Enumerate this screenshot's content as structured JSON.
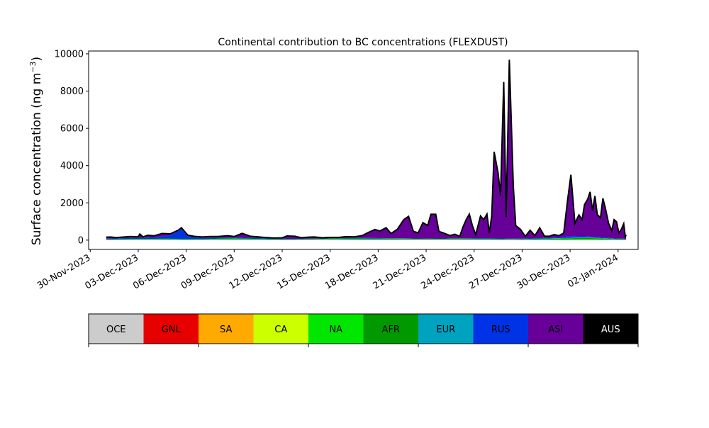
{
  "chart_data": {
    "type": "area",
    "stacked": true,
    "title": "Continental contribution to BC concentrations (FLEXDUST)",
    "ylabel": "Surface concentration (ng m",
    "ylabel_sup": "−3",
    "ylabel_close": ")",
    "xlabel": "",
    "ylim": [
      -500,
      10150
    ],
    "xlim": [
      "2023-11-30",
      "2024-01-03"
    ],
    "y_ticks": [
      0,
      2000,
      4000,
      6000,
      8000,
      10000
    ],
    "x_ticks": [
      "2023-11-30",
      "2023-12-03",
      "2023-12-06",
      "2023-12-09",
      "2023-12-12",
      "2023-12-15",
      "2023-12-18",
      "2023-12-21",
      "2023-12-24",
      "2023-12-27",
      "2023-12-30",
      "2024-01-02"
    ],
    "x_tick_labels": [
      "30-Nov-2023",
      "03-Dec-2023",
      "06-Dec-2023",
      "09-Dec-2023",
      "12-Dec-2023",
      "15-Dec-2023",
      "18-Dec-2023",
      "21-Dec-2023",
      "24-Dec-2023",
      "27-Dec-2023",
      "30-Dec-2023",
      "02-Jan-2024"
    ],
    "grid": false,
    "total_outline_color": "#000000",
    "series_order_bottom_to_top": [
      "CA",
      "NA",
      "AFR",
      "EUR",
      "RUS",
      "ASI"
    ],
    "colors": {
      "OCE": "#cccccc",
      "GNL": "#e60000",
      "SA": "#ffaa00",
      "CA": "#ccff00",
      "NA": "#00e600",
      "AFR": "#009900",
      "EUR": "#00a3bf",
      "RUS": "#0033e6",
      "ASI": "#660099",
      "AUS": "#000000"
    },
    "series": [
      {
        "name": "CA",
        "points": [
          [
            "2023-12-01",
            0
          ],
          [
            "2023-12-03",
            10
          ],
          [
            "2023-12-04",
            10
          ],
          [
            "2023-12-06",
            0
          ],
          [
            "2023-12-08",
            15
          ],
          [
            "2023-12-10",
            10
          ],
          [
            "2023-12-12",
            0
          ],
          [
            "2023-12-15",
            20
          ],
          [
            "2023-12-18",
            10
          ],
          [
            "2023-12-21",
            15
          ],
          [
            "2023-12-24",
            10
          ],
          [
            "2023-12-27",
            0
          ],
          [
            "2023-12-30",
            5
          ],
          [
            "2024-01-01",
            5
          ],
          [
            "2024-01-02",
            0
          ]
        ]
      },
      {
        "name": "NA",
        "points": [
          [
            "2023-12-01",
            20
          ],
          [
            "2023-12-03",
            30
          ],
          [
            "2023-12-05",
            40
          ],
          [
            "2023-12-07",
            20
          ],
          [
            "2023-12-09",
            60
          ],
          [
            "2023-12-11",
            30
          ],
          [
            "2023-12-13",
            20
          ],
          [
            "2023-12-15",
            30
          ],
          [
            "2023-12-17",
            40
          ],
          [
            "2023-12-19",
            30
          ],
          [
            "2023-12-21",
            20
          ],
          [
            "2023-12-23",
            30
          ],
          [
            "2023-12-25",
            20
          ],
          [
            "2023-12-27",
            20
          ],
          [
            "2023-12-29",
            40
          ],
          [
            "2023-12-31",
            60
          ],
          [
            "2024-01-02",
            30
          ]
        ]
      },
      {
        "name": "AFR",
        "points": [
          [
            "2023-12-01",
            10
          ],
          [
            "2023-12-05",
            20
          ],
          [
            "2023-12-09",
            10
          ],
          [
            "2023-12-13",
            10
          ],
          [
            "2023-12-17",
            20
          ],
          [
            "2023-12-19",
            30
          ],
          [
            "2023-12-21",
            20
          ],
          [
            "2023-12-25",
            30
          ],
          [
            "2023-12-27",
            20
          ],
          [
            "2023-12-29",
            30
          ],
          [
            "2023-12-31",
            60
          ],
          [
            "2024-01-02",
            20
          ]
        ]
      },
      {
        "name": "EUR",
        "points": [
          [
            "2023-12-01",
            10
          ],
          [
            "2023-12-06",
            10
          ],
          [
            "2023-12-10",
            10
          ],
          [
            "2023-12-15",
            10
          ],
          [
            "2023-12-20",
            10
          ],
          [
            "2023-12-25",
            10
          ],
          [
            "2023-12-28",
            20
          ],
          [
            "2023-12-31",
            30
          ],
          [
            "2024-01-02",
            10
          ]
        ]
      },
      {
        "name": "RUS",
        "points": [
          [
            "2023-12-01",
            40
          ],
          [
            "2023-12-03",
            60
          ],
          [
            "2023-12-04",
            80
          ],
          [
            "2023-12-05",
            180
          ],
          [
            "2023-12-05.7",
            520
          ],
          [
            "2023-12-06.1",
            150
          ],
          [
            "2023-12-07",
            60
          ],
          [
            "2023-12-09",
            50
          ],
          [
            "2023-12-11",
            40
          ],
          [
            "2023-12-13",
            20
          ],
          [
            "2023-12-15",
            20
          ],
          [
            "2023-12-17",
            40
          ],
          [
            "2023-12-19",
            20
          ],
          [
            "2023-12-21",
            20
          ],
          [
            "2023-12-23",
            20
          ],
          [
            "2023-12-25",
            30
          ],
          [
            "2023-12-27",
            20
          ],
          [
            "2023-12-29",
            40
          ],
          [
            "2023-12-30",
            80
          ],
          [
            "2023-12-31",
            50
          ],
          [
            "2024-01-02",
            20
          ]
        ]
      },
      {
        "name": "ASI",
        "points": [
          [
            "2023-12-01",
            80
          ],
          [
            "2023-12-01.3",
            80
          ],
          [
            "2023-12-01.6",
            40
          ],
          [
            "2023-12-02",
            60
          ],
          [
            "2023-12-02.5",
            80
          ],
          [
            "2023-12-03",
            50
          ],
          [
            "2023-12-03.1",
            200
          ],
          [
            "2023-12-03.3",
            40
          ],
          [
            "2023-12-03.6",
            120
          ],
          [
            "2023-12-04",
            80
          ],
          [
            "2023-12-04.5",
            150
          ],
          [
            "2023-12-05",
            80
          ],
          [
            "2023-12-05.5",
            40
          ],
          [
            "2023-12-05.7",
            80
          ],
          [
            "2023-12-06.1",
            60
          ],
          [
            "2023-12-06.5",
            40
          ],
          [
            "2023-12-07",
            60
          ],
          [
            "2023-12-07.5",
            70
          ],
          [
            "2023-12-08",
            60
          ],
          [
            "2023-12-08.6",
            100
          ],
          [
            "2023-12-09",
            50
          ],
          [
            "2023-12-09.5",
            230
          ],
          [
            "2023-12-10",
            90
          ],
          [
            "2023-12-10.5",
            70
          ],
          [
            "2023-12-11",
            40
          ],
          [
            "2023-12-11.5",
            30
          ],
          [
            "2023-12-12",
            50
          ],
          [
            "2023-12-12.3",
            150
          ],
          [
            "2023-12-12.8",
            140
          ],
          [
            "2023-12-13.2",
            60
          ],
          [
            "2023-12-13.6",
            80
          ],
          [
            "2023-12-14",
            90
          ],
          [
            "2023-12-14.5",
            40
          ],
          [
            "2023-12-15",
            50
          ],
          [
            "2023-12-15.5",
            40
          ],
          [
            "2023-12-16",
            80
          ],
          [
            "2023-12-16.5",
            60
          ],
          [
            "2023-12-17",
            120
          ],
          [
            "2023-12-17.4",
            300
          ],
          [
            "2023-12-17.8",
            460
          ],
          [
            "2023-12-18.1",
            380
          ],
          [
            "2023-12-18.5",
            560
          ],
          [
            "2023-12-18.8",
            250
          ],
          [
            "2023-12-19.2",
            480
          ],
          [
            "2023-12-19.6",
            1000
          ],
          [
            "2023-12-19.9",
            1180
          ],
          [
            "2023-12-20.2",
            380
          ],
          [
            "2023-12-20.5",
            300
          ],
          [
            "2023-12-20.8",
            850
          ],
          [
            "2023-12-21.1",
            700
          ],
          [
            "2023-12-21.3",
            1300
          ],
          [
            "2023-12-21.6",
            1300
          ],
          [
            "2023-12-21.8",
            380
          ],
          [
            "2023-12-22.2",
            250
          ],
          [
            "2023-12-22.5",
            150
          ],
          [
            "2023-12-22.8",
            220
          ],
          [
            "2023-12-23.1",
            100
          ],
          [
            "2023-12-23.3",
            600
          ],
          [
            "2023-12-23.5",
            1000
          ],
          [
            "2023-12-23.7",
            1300
          ],
          [
            "2023-12-23.9",
            650
          ],
          [
            "2023-12-24.1",
            200
          ],
          [
            "2023-12-24.4",
            1200
          ],
          [
            "2023-12-24.6",
            1000
          ],
          [
            "2023-12-24.8",
            1300
          ],
          [
            "2023-12-24.95",
            300
          ],
          [
            "2023-12-25.1",
            1200
          ],
          [
            "2023-12-25.25",
            4650
          ],
          [
            "2023-12-25.5",
            3500
          ],
          [
            "2023-12-25.65",
            2300
          ],
          [
            "2023-12-25.85",
            8400
          ],
          [
            "2023-12-26.0",
            1150
          ],
          [
            "2023-12-26.2",
            9600
          ],
          [
            "2023-12-26.45",
            2800
          ],
          [
            "2023-12-26.6",
            700
          ],
          [
            "2023-12-26.9",
            500
          ],
          [
            "2023-12-27.2",
            120
          ],
          [
            "2023-12-27.5",
            440
          ],
          [
            "2023-12-27.8",
            140
          ],
          [
            "2023-12-28.1",
            550
          ],
          [
            "2023-12-28.4",
            90
          ],
          [
            "2023-12-28.7",
            80
          ],
          [
            "2023-12-29",
            160
          ],
          [
            "2023-12-29.3",
            80
          ],
          [
            "2023-12-29.6",
            200
          ],
          [
            "2023-12-29.85",
            2000
          ],
          [
            "2023-12-30.05",
            3300
          ],
          [
            "2023-12-30.3",
            700
          ],
          [
            "2023-12-30.55",
            1150
          ],
          [
            "2023-12-30.75",
            900
          ],
          [
            "2023-12-30.9",
            1700
          ],
          [
            "2023-12-31.1",
            2000
          ],
          [
            "2023-12-31.25",
            2400
          ],
          [
            "2023-12-31.4",
            1400
          ],
          [
            "2023-12-31.55",
            2200
          ],
          [
            "2023-12-31.7",
            1200
          ],
          [
            "2023-12-31.9",
            1050
          ],
          [
            "2024-01-01.05",
            2100
          ],
          [
            "2024-01-01.2",
            1600
          ],
          [
            "2024-01-01.4",
            800
          ],
          [
            "2024-01-01.6",
            400
          ],
          [
            "2024-01-01.75",
            1000
          ],
          [
            "2024-01-01.9",
            900
          ],
          [
            "2024-01-02.05",
            300
          ],
          [
            "2024-01-02.2",
            500
          ],
          [
            "2024-01-02.35",
            800
          ],
          [
            "2024-01-02.45",
            100
          ],
          [
            "2024-01-02.5",
            200
          ]
        ]
      }
    ]
  },
  "legend": {
    "items": [
      {
        "label": "OCE",
        "color": "#cccccc"
      },
      {
        "label": "GNL",
        "color": "#e60000"
      },
      {
        "label": "SA",
        "color": "#ffaa00"
      },
      {
        "label": "CA",
        "color": "#ccff00"
      },
      {
        "label": "NA",
        "color": "#00e600"
      },
      {
        "label": "AFR",
        "color": "#009900"
      },
      {
        "label": "EUR",
        "color": "#00a3bf"
      },
      {
        "label": "RUS",
        "color": "#0033e6"
      },
      {
        "label": "ASI",
        "color": "#660099"
      },
      {
        "label": "AUS",
        "color": "#000000"
      }
    ]
  }
}
